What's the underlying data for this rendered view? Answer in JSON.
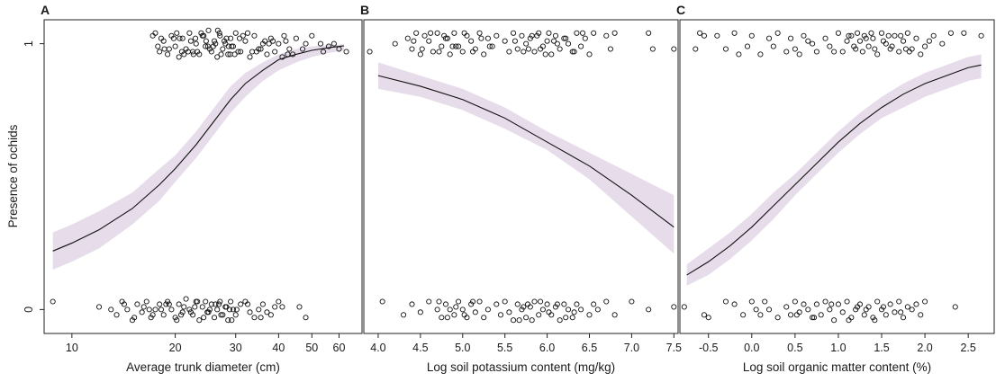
{
  "figure": {
    "ylabel": "Presence of ochids",
    "y_ticks": [
      0,
      1
    ],
    "colors": {
      "band": "#e6dcea",
      "curve": "#111111",
      "points": "#111111",
      "frame": "#222222"
    }
  },
  "chart_data": [
    {
      "type": "scatter",
      "panel": "A",
      "xlabel": "Average trunk diameter (cm)",
      "ylabel": "Presence of ochids",
      "x_scale": "log",
      "xlim": [
        8.3,
        70
      ],
      "ylim": [
        -0.09,
        1.09
      ],
      "x_ticks": [
        10,
        20,
        30,
        40,
        50,
        60
      ],
      "y_ticks": [
        0,
        1
      ],
      "fit": {
        "x": [
          8.8,
          10,
          12,
          15,
          18,
          20,
          23,
          26,
          29,
          32,
          36,
          40,
          45,
          50,
          56,
          62
        ],
        "y": [
          0.22,
          0.25,
          0.3,
          0.38,
          0.47,
          0.53,
          0.62,
          0.71,
          0.79,
          0.85,
          0.9,
          0.94,
          0.96,
          0.975,
          0.985,
          0.992
        ],
        "lower": [
          0.15,
          0.18,
          0.23,
          0.32,
          0.41,
          0.48,
          0.57,
          0.66,
          0.74,
          0.8,
          0.86,
          0.9,
          0.93,
          0.95,
          0.965,
          0.975
        ],
        "upper": [
          0.29,
          0.32,
          0.37,
          0.44,
          0.53,
          0.58,
          0.67,
          0.76,
          0.84,
          0.89,
          0.93,
          0.96,
          0.98,
          0.99,
          0.995,
          0.998
        ]
      },
      "points_present": {
        "x": [
          17.5,
          18,
          18.5,
          19,
          19.5,
          20,
          20.5,
          21,
          21.5,
          22,
          22.5,
          23,
          23.5,
          24,
          24.5,
          25,
          25.5,
          26,
          26.5,
          27,
          27.5,
          28,
          28.5,
          29,
          29.5,
          30,
          31,
          32,
          33,
          34,
          35,
          36,
          37,
          38,
          39,
          40,
          41,
          42,
          43,
          44,
          45,
          47,
          50,
          53,
          56,
          60,
          63,
          18.2,
          19.2,
          20.2,
          21.2,
          22.2,
          23.2,
          24.2,
          25.2,
          26.2,
          27.2,
          28.2,
          29.2,
          30.5,
          32.5,
          35.5,
          38.5,
          42.5,
          48,
          17.8,
          19.8,
          21.8,
          23.8,
          25.8,
          27.8,
          29.8,
          31.5,
          34.5,
          18.6,
          20.6,
          22.6,
          24.6,
          26.6,
          28.6,
          30.8,
          33.5,
          37.5,
          41.5,
          20.9,
          22.9,
          24.9,
          26.9,
          28.9,
          36.5,
          17.2,
          54,
          58
        ],
        "y": [
          1.04,
          0.97,
          1.01,
          0.96,
          1.03,
          0.99,
          0.95,
          1.02,
          0.98,
          1.04,
          0.97,
          1.0,
          0.96,
          1.03,
          0.99,
          1.05,
          0.97,
          1.01,
          0.95,
          1.03,
          0.98,
          1.0,
          0.96,
          1.02,
          0.99,
          1.04,
          0.97,
          1.01,
          0.95,
          1.03,
          0.98,
          1.0,
          0.96,
          1.02,
          0.97,
          1.0,
          0.95,
          1.01,
          0.98,
          0.96,
          1.02,
          0.98,
          1.03,
          1.0,
          0.99,
          0.98,
          0.97,
          1.02,
          0.98,
          1.04,
          0.96,
          1.01,
          0.97,
          1.03,
          0.98,
          1.0,
          0.96,
          1.02,
          0.99,
          0.97,
          1.04,
          0.98,
          1.01,
          0.96,
          1.0,
          0.99,
          1.02,
          0.97,
          1.04,
          0.99,
          1.01,
          0.96,
          1.03,
          0.97,
          0.98,
          1.02,
          0.96,
          1.01,
          1.05,
          0.99,
          1.02,
          0.97,
          1.0,
          1.03,
          0.97,
          1.02,
          0.99,
          1.04,
          0.96,
          1.01,
          1.03,
          0.97,
          1.0
        ]
      },
      "points_absent": {
        "x": [
          8.8,
          12,
          13,
          13.5,
          14,
          14.5,
          15,
          15.5,
          16,
          16.5,
          17,
          17.5,
          18,
          18.5,
          19,
          19.5,
          20,
          20.5,
          21,
          21.5,
          22,
          22.5,
          23,
          23.5,
          24,
          24.5,
          25,
          25.5,
          26,
          26.5,
          27,
          27.5,
          28,
          28.5,
          29,
          29.5,
          30,
          31,
          32,
          33,
          34,
          35,
          36,
          37,
          38,
          39,
          40,
          41,
          46,
          48,
          14.2,
          15.2,
          16.2,
          17.2,
          18.2,
          19.2,
          20.2,
          21.2,
          22.2,
          23.2,
          24.2,
          25.2,
          26.2,
          27.2,
          28.2,
          29.2,
          30.2,
          32.5,
          35.5,
          16.8,
          18.8,
          20.8,
          22.8,
          24.8,
          26.8,
          28.8
        ],
        "y": [
          0.03,
          0.01,
          0.0,
          -0.02,
          0.03,
          0.0,
          -0.04,
          0.02,
          -0.01,
          0.03,
          -0.03,
          0.0,
          0.02,
          -0.02,
          0.03,
          0.0,
          -0.03,
          0.02,
          -0.01,
          0.04,
          0.0,
          -0.02,
          0.03,
          -0.04,
          0.01,
          0.03,
          -0.01,
          0.02,
          -0.03,
          0.0,
          0.03,
          -0.02,
          0.01,
          -0.04,
          0.03,
          0.0,
          -0.02,
          0.02,
          0.03,
          -0.01,
          -0.03,
          0.0,
          0.02,
          -0.01,
          -0.02,
          0.01,
          0.03,
          0.01,
          0.01,
          -0.03,
          0.02,
          -0.03,
          0.01,
          -0.02,
          0.0,
          0.02,
          -0.04,
          0.01,
          -0.01,
          0.03,
          -0.03,
          0.0,
          0.02,
          -0.02,
          0.01,
          -0.04,
          0.0,
          0.02,
          -0.03,
          0.0,
          0.02,
          -0.02,
          0.01,
          -0.01,
          0.02,
          0.0
        ]
      }
    },
    {
      "type": "scatter",
      "panel": "B",
      "xlabel": "Log soil potassium content (mg/kg)",
      "ylabel": "Presence of ochids",
      "x_scale": "linear",
      "xlim": [
        3.83,
        7.55
      ],
      "ylim": [
        -0.09,
        1.09
      ],
      "x_ticks": [
        4.0,
        4.5,
        5.0,
        5.5,
        6.0,
        6.5,
        7.0,
        7.5
      ],
      "x_tick_labels": [
        "4.0",
        "4.5",
        "5.0",
        "5.5",
        "6.0",
        "6.5",
        "7.0",
        "7.5"
      ],
      "y_ticks": [
        0,
        1
      ],
      "fit": {
        "x": [
          4.0,
          4.5,
          5.0,
          5.5,
          6.0,
          6.5,
          7.0,
          7.5
        ],
        "y": [
          0.88,
          0.84,
          0.79,
          0.72,
          0.63,
          0.54,
          0.43,
          0.31
        ],
        "lower": [
          0.83,
          0.8,
          0.75,
          0.68,
          0.6,
          0.49,
          0.35,
          0.21
        ],
        "upper": [
          0.93,
          0.88,
          0.83,
          0.76,
          0.67,
          0.59,
          0.51,
          0.43
        ]
      },
      "points_present": {
        "x": [
          3.9,
          4.2,
          4.35,
          4.4,
          4.45,
          4.5,
          4.55,
          4.6,
          4.65,
          4.7,
          4.75,
          4.8,
          4.85,
          4.9,
          4.95,
          5.0,
          5.05,
          5.1,
          5.15,
          5.2,
          5.25,
          5.3,
          5.35,
          5.4,
          5.5,
          5.55,
          5.6,
          5.65,
          5.7,
          5.75,
          5.8,
          5.85,
          5.9,
          5.95,
          6.0,
          6.05,
          6.1,
          6.15,
          6.2,
          6.25,
          6.3,
          6.35,
          6.4,
          6.45,
          6.5,
          6.55,
          6.7,
          6.75,
          6.8,
          7.2,
          7.25,
          7.5,
          4.42,
          4.52,
          4.62,
          4.72,
          4.82,
          4.92,
          5.02,
          5.12,
          5.22,
          5.32,
          5.62,
          5.72,
          5.82,
          5.92,
          6.02,
          6.12,
          6.22,
          6.32,
          6.42,
          4.78,
          4.88,
          5.78,
          5.88,
          5.98,
          6.08
        ],
        "y": [
          0.97,
          1.0,
          1.02,
          0.98,
          1.04,
          0.96,
          1.03,
          1.01,
          0.97,
          1.04,
          0.99,
          1.02,
          0.96,
          1.04,
          0.99,
          0.97,
          1.03,
          1.01,
          0.98,
          1.04,
          0.96,
          1.02,
          0.99,
          1.03,
          1.01,
          0.97,
          1.04,
          0.98,
          1.03,
          1.0,
          1.02,
          0.97,
          1.04,
          0.99,
          1.01,
          0.96,
          1.03,
          0.98,
          1.02,
          1.0,
          0.97,
          1.04,
          0.99,
          1.02,
          0.96,
          1.04,
          1.03,
          0.98,
          1.04,
          1.04,
          0.98,
          0.98,
          1.01,
          0.98,
          1.04,
          0.97,
          1.02,
          0.99,
          1.04,
          0.97,
          1.02,
          0.99,
          1.01,
          0.97,
          1.03,
          0.98,
          1.04,
          1.0,
          1.02,
          0.97,
          1.04,
          1.03,
          0.99,
          0.98,
          1.03,
          0.96,
          1.01
        ]
      },
      "points_absent": {
        "x": [
          4.05,
          4.3,
          4.4,
          4.5,
          4.6,
          4.7,
          4.75,
          4.8,
          4.85,
          4.9,
          4.95,
          5.0,
          5.05,
          5.1,
          5.15,
          5.2,
          5.25,
          5.3,
          5.4,
          5.45,
          5.5,
          5.55,
          5.6,
          5.65,
          5.7,
          5.75,
          5.8,
          5.85,
          5.9,
          5.95,
          6.0,
          6.05,
          6.1,
          6.15,
          6.2,
          6.25,
          6.3,
          6.35,
          6.4,
          6.5,
          6.55,
          6.6,
          6.7,
          6.8,
          7.0,
          7.2,
          7.5,
          4.72,
          4.82,
          4.92,
          5.02,
          5.12,
          5.72,
          5.82,
          5.92,
          6.02,
          6.12,
          6.22,
          6.32,
          5.67,
          5.77
        ],
        "y": [
          0.03,
          -0.02,
          0.02,
          -0.01,
          0.03,
          0.0,
          -0.03,
          0.02,
          0.0,
          -0.02,
          0.03,
          0.0,
          -0.03,
          0.02,
          -0.01,
          0.03,
          -0.03,
          0.0,
          0.02,
          -0.02,
          0.03,
          -0.01,
          -0.04,
          0.02,
          0.0,
          -0.03,
          0.01,
          0.03,
          -0.02,
          0.0,
          0.02,
          -0.02,
          0.01,
          -0.04,
          0.02,
          0.0,
          -0.03,
          0.02,
          0.0,
          -0.02,
          0.02,
          0.0,
          0.03,
          -0.02,
          0.03,
          0.0,
          0.01,
          0.03,
          -0.03,
          0.01,
          -0.02,
          0.03,
          0.01,
          -0.04,
          0.03,
          -0.01,
          0.02,
          -0.03,
          -0.01,
          -0.04,
          0.02
        ]
      }
    },
    {
      "type": "scatter",
      "panel": "C",
      "xlabel": "Log soil organic matter content (%)",
      "ylabel": "Presence of ochids",
      "x_scale": "linear",
      "xlim": [
        -0.83,
        2.8
      ],
      "ylim": [
        -0.09,
        1.09
      ],
      "x_ticks": [
        -0.5,
        0.0,
        0.5,
        1.0,
        1.5,
        2.0,
        2.5
      ],
      "x_tick_labels": [
        "-0.5",
        "0.0",
        "0.5",
        "1.0",
        "1.5",
        "2.0",
        "2.5"
      ],
      "y_ticks": [
        0,
        1
      ],
      "fit": {
        "x": [
          -0.75,
          -0.5,
          -0.25,
          0.0,
          0.25,
          0.5,
          0.75,
          1.0,
          1.25,
          1.5,
          1.75,
          2.0,
          2.25,
          2.5,
          2.65
        ],
        "y": [
          0.13,
          0.18,
          0.24,
          0.31,
          0.39,
          0.47,
          0.55,
          0.63,
          0.7,
          0.76,
          0.81,
          0.85,
          0.88,
          0.91,
          0.92
        ],
        "lower": [
          0.09,
          0.13,
          0.19,
          0.26,
          0.34,
          0.43,
          0.51,
          0.59,
          0.66,
          0.72,
          0.76,
          0.8,
          0.83,
          0.86,
          0.87
        ],
        "upper": [
          0.17,
          0.23,
          0.29,
          0.36,
          0.44,
          0.51,
          0.59,
          0.67,
          0.74,
          0.8,
          0.85,
          0.89,
          0.92,
          0.95,
          0.96
        ]
      },
      "points_present": {
        "x": [
          -0.65,
          -0.6,
          -0.55,
          -0.4,
          -0.3,
          -0.2,
          -0.15,
          -0.05,
          0.0,
          0.1,
          0.2,
          0.25,
          0.3,
          0.4,
          0.45,
          0.5,
          0.6,
          0.7,
          0.75,
          0.85,
          0.9,
          1.0,
          1.05,
          1.1,
          1.15,
          1.2,
          1.22,
          1.25,
          1.28,
          1.3,
          1.35,
          1.4,
          1.45,
          1.5,
          1.55,
          1.6,
          1.65,
          1.7,
          1.75,
          1.8,
          1.85,
          1.9,
          1.95,
          2.0,
          2.1,
          2.2,
          2.3,
          2.45,
          2.65,
          0.95,
          1.12,
          1.32,
          1.42,
          1.52,
          1.62,
          1.72,
          1.82,
          0.55,
          0.65,
          1.18,
          1.38,
          1.58,
          1.78,
          2.05
        ],
        "y": [
          0.98,
          1.04,
          1.03,
          1.03,
          0.98,
          1.04,
          0.96,
          0.99,
          1.03,
          0.96,
          1.02,
          0.99,
          1.04,
          0.97,
          1.02,
          0.98,
          1.03,
          1.0,
          0.97,
          1.02,
          0.99,
          1.04,
          0.97,
          1.01,
          1.03,
          0.98,
          1.04,
          1.01,
          0.97,
          1.03,
          0.99,
          1.02,
          0.96,
          1.04,
          1.0,
          0.98,
          1.03,
          0.97,
          1.01,
          1.04,
          0.98,
          1.02,
          0.96,
          0.99,
          1.03,
          1.0,
          1.04,
          1.04,
          1.03,
          0.97,
          1.03,
          1.02,
          0.98,
          1.01,
          0.99,
          1.03,
          0.97,
          0.96,
          1.01,
          0.99,
          1.04,
          1.03,
          0.98,
          1.01
        ]
      },
      "points_absent": {
        "x": [
          -0.78,
          -0.55,
          -0.5,
          -0.3,
          -0.2,
          -0.1,
          0.0,
          0.05,
          0.1,
          0.15,
          0.2,
          0.3,
          0.4,
          0.45,
          0.5,
          0.55,
          0.6,
          0.65,
          0.7,
          0.75,
          0.8,
          0.85,
          0.9,
          0.95,
          1.0,
          1.05,
          1.1,
          1.15,
          1.2,
          1.25,
          1.3,
          1.35,
          1.4,
          1.45,
          1.5,
          1.55,
          1.6,
          1.65,
          1.7,
          1.75,
          1.8,
          1.85,
          1.9,
          1.95,
          2.0,
          2.35,
          1.12,
          1.32,
          1.52,
          1.72,
          0.52,
          0.72,
          0.92,
          1.22,
          1.42
        ],
        "y": [
          0.01,
          -0.02,
          -0.03,
          0.03,
          0.02,
          -0.02,
          0.03,
          0.0,
          -0.02,
          0.03,
          0.0,
          -0.03,
          0.01,
          -0.02,
          0.03,
          -0.01,
          0.02,
          0.0,
          -0.03,
          0.02,
          -0.02,
          0.03,
          0.0,
          -0.04,
          0.02,
          -0.01,
          0.03,
          -0.03,
          0.0,
          0.02,
          -0.02,
          0.01,
          -0.03,
          0.03,
          0.0,
          -0.02,
          0.02,
          -0.01,
          0.03,
          -0.03,
          0.01,
          0.0,
          0.02,
          -0.02,
          0.03,
          0.01,
          -0.04,
          0.0,
          0.01,
          -0.01,
          -0.02,
          -0.03,
          0.02,
          0.01,
          -0.04
        ]
      }
    }
  ]
}
